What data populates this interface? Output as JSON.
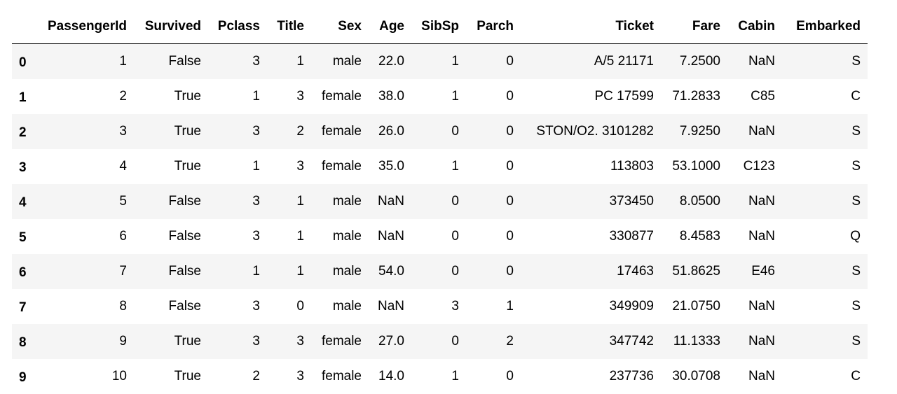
{
  "table": {
    "columns": [
      "PassengerId",
      "Survived",
      "Pclass",
      "Title",
      "Sex",
      "Age",
      "SibSp",
      "Parch",
      "Ticket",
      "Fare",
      "Cabin",
      "Embarked"
    ],
    "index": [
      "0",
      "1",
      "2",
      "3",
      "4",
      "5",
      "6",
      "7",
      "8",
      "9"
    ],
    "rows": [
      [
        "1",
        "False",
        "3",
        "1",
        "male",
        "22.0",
        "1",
        "0",
        "A/5 21171",
        "7.2500",
        "NaN",
        "S"
      ],
      [
        "2",
        "True",
        "1",
        "3",
        "female",
        "38.0",
        "1",
        "0",
        "PC 17599",
        "71.2833",
        "C85",
        "C"
      ],
      [
        "3",
        "True",
        "3",
        "2",
        "female",
        "26.0",
        "0",
        "0",
        "STON/O2. 3101282",
        "7.9250",
        "NaN",
        "S"
      ],
      [
        "4",
        "True",
        "1",
        "3",
        "female",
        "35.0",
        "1",
        "0",
        "113803",
        "53.1000",
        "C123",
        "S"
      ],
      [
        "5",
        "False",
        "3",
        "1",
        "male",
        "NaN",
        "0",
        "0",
        "373450",
        "8.0500",
        "NaN",
        "S"
      ],
      [
        "6",
        "False",
        "3",
        "1",
        "male",
        "NaN",
        "0",
        "0",
        "330877",
        "8.4583",
        "NaN",
        "Q"
      ],
      [
        "7",
        "False",
        "1",
        "1",
        "male",
        "54.0",
        "0",
        "0",
        "17463",
        "51.8625",
        "E46",
        "S"
      ],
      [
        "8",
        "False",
        "3",
        "0",
        "male",
        "NaN",
        "3",
        "1",
        "349909",
        "21.0750",
        "NaN",
        "S"
      ],
      [
        "9",
        "True",
        "3",
        "3",
        "female",
        "27.0",
        "0",
        "2",
        "347742",
        "11.1333",
        "NaN",
        "S"
      ],
      [
        "10",
        "True",
        "2",
        "3",
        "female",
        "14.0",
        "1",
        "0",
        "237736",
        "30.0708",
        "NaN",
        "C"
      ]
    ]
  }
}
